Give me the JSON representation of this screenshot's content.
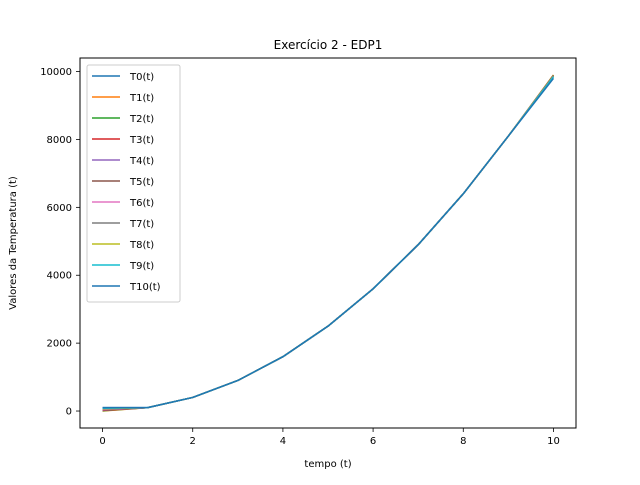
{
  "chart_data": {
    "type": "line",
    "title": "Exercício 2 - EDP1",
    "xlabel": "tempo (t)",
    "ylabel": "Valores da Temperatura (t)",
    "xlim": [
      -0.5,
      10.5
    ],
    "ylim": [
      -500,
      10400
    ],
    "xticks": [
      0,
      2,
      4,
      6,
      8,
      10
    ],
    "xtick_labels": [
      "0",
      "2",
      "4",
      "6",
      "8",
      "10"
    ],
    "yticks": [
      0,
      2000,
      4000,
      6000,
      8000,
      10000
    ],
    "ytick_labels": [
      "0",
      "2000",
      "4000",
      "6000",
      "8000",
      "10000"
    ],
    "grid": false,
    "legend_position": "top-left",
    "x": [
      0,
      1,
      2,
      3,
      4,
      5,
      6,
      7,
      8,
      9,
      10
    ],
    "series": [
      {
        "name": "T0(t)",
        "color": "#1f77b4",
        "values": [
          100,
          100,
          400,
          900,
          1600,
          2500,
          3600,
          4900,
          6400,
          8100,
          9850
        ]
      },
      {
        "name": "T1(t)",
        "color": "#ff7f0e",
        "values": [
          0,
          100,
          400,
          900,
          1600,
          2500,
          3600,
          4900,
          6400,
          8100,
          9900
        ]
      },
      {
        "name": "T2(t)",
        "color": "#2ca02c",
        "values": [
          10,
          100,
          400,
          900,
          1600,
          2500,
          3600,
          4900,
          6400,
          8100,
          9890
        ]
      },
      {
        "name": "T3(t)",
        "color": "#d62728",
        "values": [
          20,
          100,
          400,
          900,
          1600,
          2500,
          3600,
          4900,
          6400,
          8100,
          9880
        ]
      },
      {
        "name": "T4(t)",
        "color": "#9467bd",
        "values": [
          30,
          100,
          400,
          900,
          1600,
          2500,
          3600,
          4900,
          6400,
          8100,
          9875
        ]
      },
      {
        "name": "T5(t)",
        "color": "#8c564b",
        "values": [
          40,
          100,
          400,
          900,
          1600,
          2500,
          3600,
          4900,
          6400,
          8100,
          9870
        ]
      },
      {
        "name": "T6(t)",
        "color": "#e377c2",
        "values": [
          50,
          100,
          400,
          900,
          1600,
          2500,
          3600,
          4900,
          6400,
          8100,
          9865
        ]
      },
      {
        "name": "T7(t)",
        "color": "#7f7f7f",
        "values": [
          60,
          100,
          400,
          900,
          1600,
          2500,
          3600,
          4900,
          6400,
          8100,
          9860
        ]
      },
      {
        "name": "T8(t)",
        "color": "#bcbd22",
        "values": [
          70,
          100,
          400,
          900,
          1600,
          2500,
          3600,
          4900,
          6400,
          8100,
          9855
        ]
      },
      {
        "name": "T9(t)",
        "color": "#17becf",
        "values": [
          80,
          100,
          400,
          900,
          1600,
          2500,
          3600,
          4900,
          6400,
          8100,
          9850
        ]
      },
      {
        "name": "T10(t)",
        "color": "#1f77b4",
        "values": [
          100,
          100,
          400,
          900,
          1600,
          2500,
          3600,
          4900,
          6400,
          8100,
          9800
        ]
      }
    ]
  }
}
